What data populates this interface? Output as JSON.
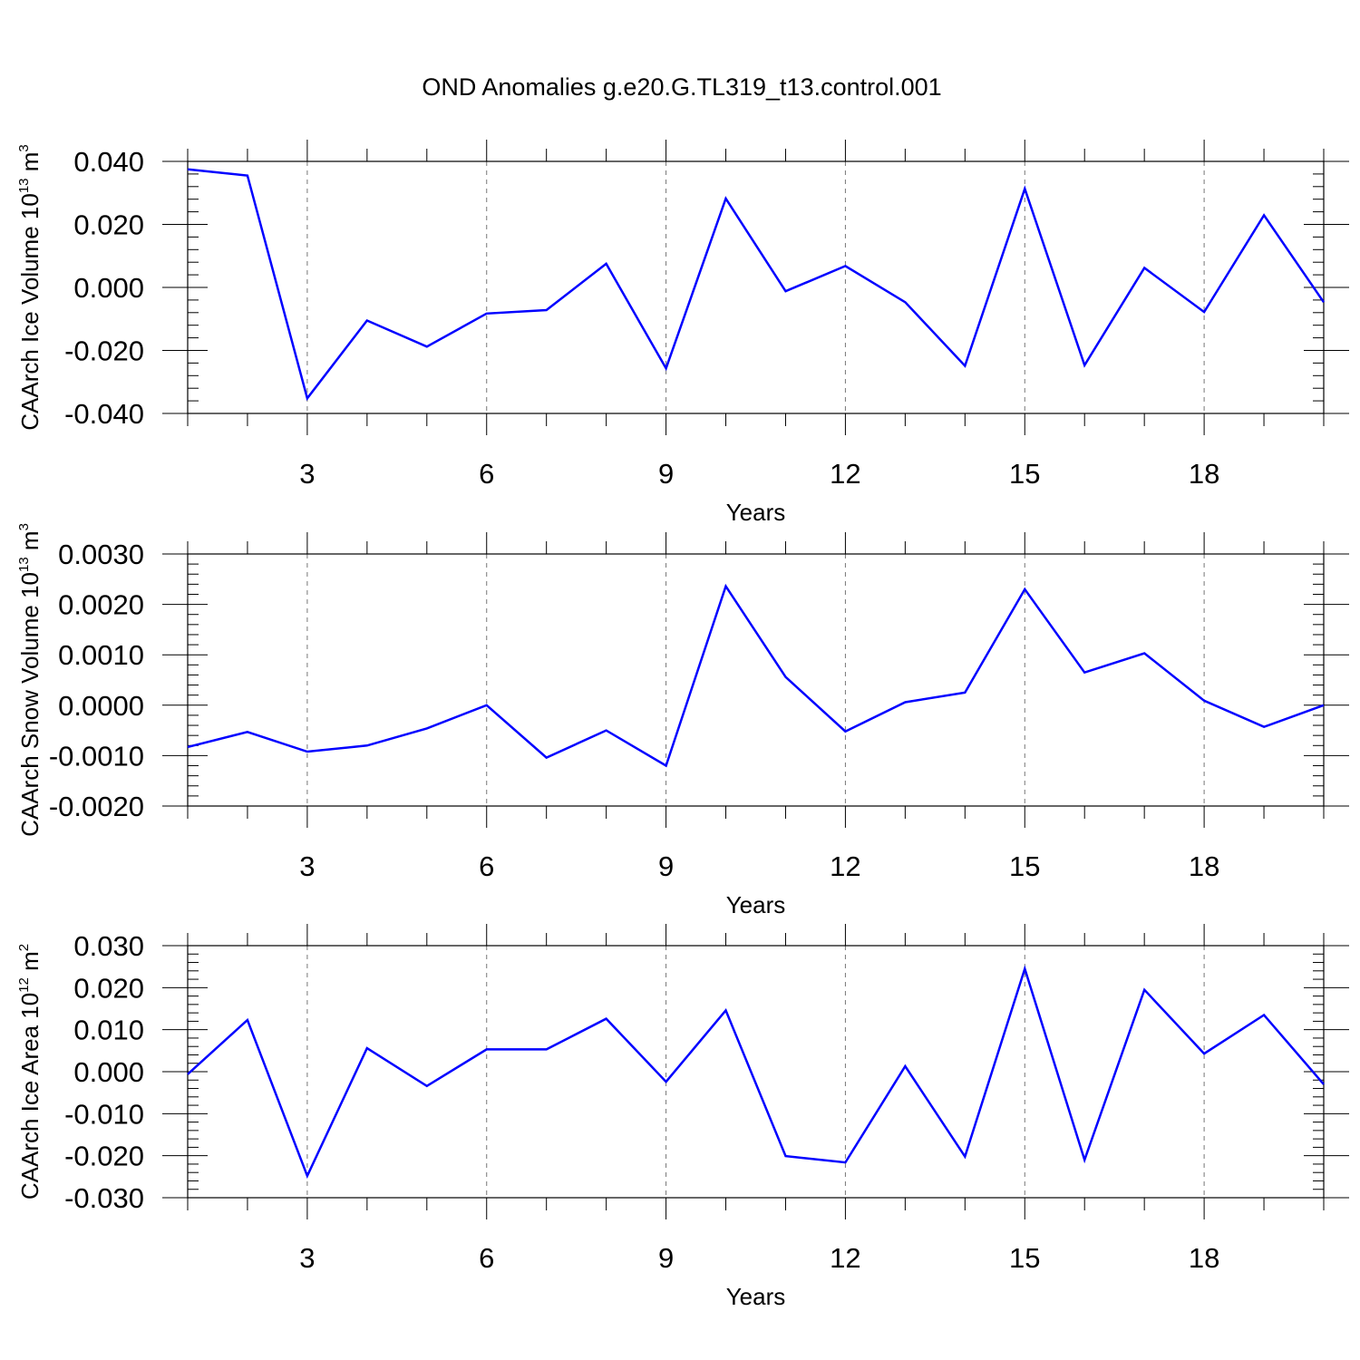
{
  "title": "OND Anomalies g.e20.G.TL319_t13.control.001",
  "chart_data": [
    {
      "type": "line",
      "xlabel": "Years",
      "ylabel": {
        "prefix": "CAArch Ice Volume 10",
        "exp": "13",
        "unit": " m",
        "unit_exp": "3"
      },
      "xlim": [
        1,
        20
      ],
      "ylim": [
        -0.04,
        0.04
      ],
      "x_ticks": [
        3,
        6,
        9,
        12,
        15,
        18
      ],
      "x_tick_labels": [
        "3",
        "6",
        "9",
        "12",
        "15",
        "18"
      ],
      "y_ticks": [
        -0.04,
        -0.02,
        0,
        0.02,
        0.04
      ],
      "y_tick_labels": [
        "-0.040",
        "-0.020",
        "0.000",
        "0.020",
        "0.040"
      ],
      "grid": "vertical dashed at major x ticks",
      "line_color": "#0000ff",
      "series": [
        {
          "x": [
            1,
            2,
            3,
            4,
            5,
            6,
            7,
            8,
            9,
            10,
            11,
            12,
            13,
            14,
            15,
            16,
            17,
            18,
            19,
            20
          ],
          "values": [
            0.0375,
            0.0355,
            -0.0352,
            -0.0105,
            -0.0188,
            -0.0083,
            -0.0072,
            0.0075,
            -0.0257,
            0.0282,
            -0.0012,
            0.0068,
            -0.0047,
            -0.0249,
            0.0313,
            -0.0247,
            0.0062,
            -0.0078,
            0.0229,
            -0.0047
          ]
        }
      ]
    },
    {
      "type": "line",
      "xlabel": "Years",
      "ylabel": {
        "prefix": "CAArch Snow Volume 10",
        "exp": "13",
        "unit": " m",
        "unit_exp": "3"
      },
      "xlim": [
        1,
        20
      ],
      "ylim": [
        -0.002,
        0.003
      ],
      "x_ticks": [
        3,
        6,
        9,
        12,
        15,
        18
      ],
      "x_tick_labels": [
        "3",
        "6",
        "9",
        "12",
        "15",
        "18"
      ],
      "y_ticks": [
        -0.002,
        -0.001,
        0,
        0.001,
        0.002,
        0.003
      ],
      "y_tick_labels": [
        "-0.0020",
        "-0.0010",
        "0.0000",
        "0.0010",
        "0.0020",
        "0.0030"
      ],
      "grid": "vertical dashed at major x ticks",
      "line_color": "#0000ff",
      "series": [
        {
          "x": [
            1,
            2,
            3,
            4,
            5,
            6,
            7,
            8,
            9,
            10,
            11,
            12,
            13,
            14,
            15,
            16,
            17,
            18,
            19,
            20
          ],
          "values": [
            -0.00083,
            -0.00053,
            -0.00092,
            -0.0008,
            -0.00046,
            0.0,
            -0.00104,
            -0.0005,
            -0.0012,
            0.00236,
            0.00056,
            -0.00052,
            6e-05,
            0.00025,
            0.0023,
            0.00065,
            0.00103,
            9e-05,
            -0.00043,
            0.0
          ]
        }
      ]
    },
    {
      "type": "line",
      "xlabel": "Years",
      "ylabel": {
        "prefix": "CAArch Ice Area 10",
        "exp": "12",
        "unit": " m",
        "unit_exp": "2"
      },
      "xlim": [
        1,
        20
      ],
      "ylim": [
        -0.03,
        0.03
      ],
      "x_ticks": [
        3,
        6,
        9,
        12,
        15,
        18
      ],
      "x_tick_labels": [
        "3",
        "6",
        "9",
        "12",
        "15",
        "18"
      ],
      "y_ticks": [
        -0.03,
        -0.02,
        -0.01,
        0,
        0.01,
        0.02,
        0.03
      ],
      "y_tick_labels": [
        "-0.030",
        "-0.020",
        "-0.010",
        "0.000",
        "0.010",
        "0.020",
        "0.030"
      ],
      "grid": "vertical dashed at major x ticks",
      "line_color": "#0000ff",
      "series": [
        {
          "x": [
            1,
            2,
            3,
            4,
            5,
            6,
            7,
            8,
            9,
            10,
            11,
            12,
            13,
            14,
            15,
            16,
            17,
            18,
            19,
            20
          ],
          "values": [
            -0.0006,
            0.0123,
            -0.0248,
            0.0056,
            -0.0034,
            0.0053,
            0.0053,
            0.0126,
            -0.0024,
            0.0146,
            -0.0201,
            -0.0216,
            0.0013,
            -0.0202,
            0.0245,
            -0.021,
            0.0195,
            0.0043,
            0.0135,
            -0.003
          ]
        }
      ]
    }
  ]
}
